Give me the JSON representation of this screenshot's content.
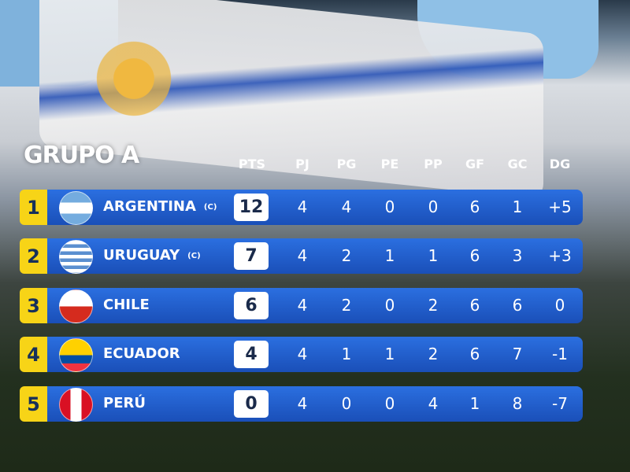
{
  "title": "GRUPO A",
  "headers": [
    "PTS",
    "PJ",
    "PG",
    "PE",
    "PP",
    "GF",
    "GC",
    "DG"
  ],
  "colors": {
    "position_badge": "#f7d417",
    "row_bar": "#2360d0",
    "points_box": "#ffffff"
  },
  "teams": [
    {
      "pos": "1",
      "name": "ARGENTINA",
      "tag": "(C)",
      "flag": "argentina-flag",
      "pts": "12",
      "stats": [
        "4",
        "4",
        "0",
        "0",
        "6",
        "1",
        "+5"
      ]
    },
    {
      "pos": "2",
      "name": "URUGUAY",
      "tag": "(C)",
      "flag": "uruguay-flag",
      "pts": "7",
      "stats": [
        "4",
        "2",
        "1",
        "1",
        "6",
        "3",
        "+3"
      ]
    },
    {
      "pos": "3",
      "name": "CHILE",
      "tag": "",
      "flag": "chile-flag",
      "pts": "6",
      "stats": [
        "4",
        "2",
        "0",
        "2",
        "6",
        "6",
        "0"
      ]
    },
    {
      "pos": "4",
      "name": "ECUADOR",
      "tag": "",
      "flag": "ecuador-flag",
      "pts": "4",
      "stats": [
        "4",
        "1",
        "1",
        "2",
        "6",
        "7",
        "-1"
      ]
    },
    {
      "pos": "5",
      "name": "PERÚ",
      "tag": "",
      "flag": "peru-flag",
      "pts": "0",
      "stats": [
        "4",
        "0",
        "0",
        "4",
        "1",
        "8",
        "-7"
      ]
    }
  ]
}
